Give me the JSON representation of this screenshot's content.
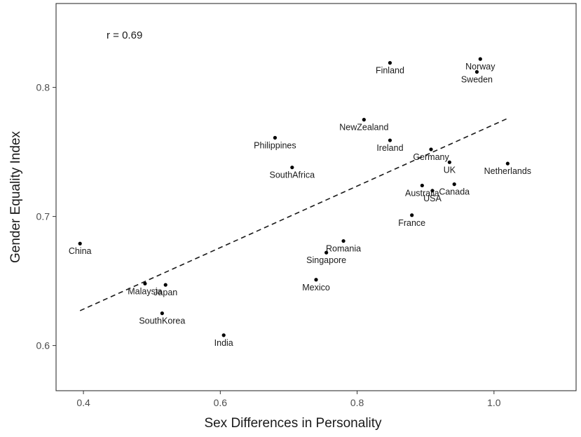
{
  "chart_data": {
    "type": "scatter",
    "title": "",
    "xlabel": "Sex Differences in Personality",
    "ylabel": "Gender Equality Index",
    "annotation": "r = 0.69",
    "xlim": [
      0.36,
      1.12
    ],
    "ylim": [
      0.565,
      0.865
    ],
    "xticks": [
      0.4,
      0.6,
      0.8,
      1.0
    ],
    "xtick_labels": [
      "0.4",
      "0.6",
      "0.8",
      "1.0"
    ],
    "yticks": [
      0.6,
      0.7,
      0.8
    ],
    "ytick_labels": [
      "0.6",
      "0.7",
      "0.8"
    ],
    "grid": false,
    "legend": "none",
    "point_color": "#000000",
    "trendline": {
      "style": "dashed",
      "x": [
        0.395,
        1.02
      ],
      "y": [
        0.627,
        0.776
      ]
    },
    "points": [
      {
        "label": "China",
        "x": 0.395,
        "y": 0.679
      },
      {
        "label": "Malaysia",
        "x": 0.49,
        "y": 0.648
      },
      {
        "label": "Japan",
        "x": 0.52,
        "y": 0.647
      },
      {
        "label": "SouthKorea",
        "x": 0.515,
        "y": 0.625
      },
      {
        "label": "India",
        "x": 0.605,
        "y": 0.608
      },
      {
        "label": "Philippines",
        "x": 0.68,
        "y": 0.761
      },
      {
        "label": "SouthAfrica",
        "x": 0.705,
        "y": 0.738
      },
      {
        "label": "Mexico",
        "x": 0.74,
        "y": 0.651
      },
      {
        "label": "Singapore",
        "x": 0.755,
        "y": 0.672
      },
      {
        "label": "Romania",
        "x": 0.78,
        "y": 0.681
      },
      {
        "label": "NewZealand",
        "x": 0.81,
        "y": 0.775
      },
      {
        "label": "Finland",
        "x": 0.848,
        "y": 0.819
      },
      {
        "label": "Ireland",
        "x": 0.848,
        "y": 0.759
      },
      {
        "label": "France",
        "x": 0.88,
        "y": 0.701
      },
      {
        "label": "Australia",
        "x": 0.895,
        "y": 0.724
      },
      {
        "label": "Germany",
        "x": 0.908,
        "y": 0.752
      },
      {
        "label": "USA",
        "x": 0.91,
        "y": 0.72
      },
      {
        "label": "UK",
        "x": 0.935,
        "y": 0.742
      },
      {
        "label": "Canada",
        "x": 0.942,
        "y": 0.725
      },
      {
        "label": "Sweden",
        "x": 0.975,
        "y": 0.812
      },
      {
        "label": "Norway",
        "x": 0.98,
        "y": 0.822
      },
      {
        "label": "Netherlands",
        "x": 1.02,
        "y": 0.741
      }
    ]
  }
}
